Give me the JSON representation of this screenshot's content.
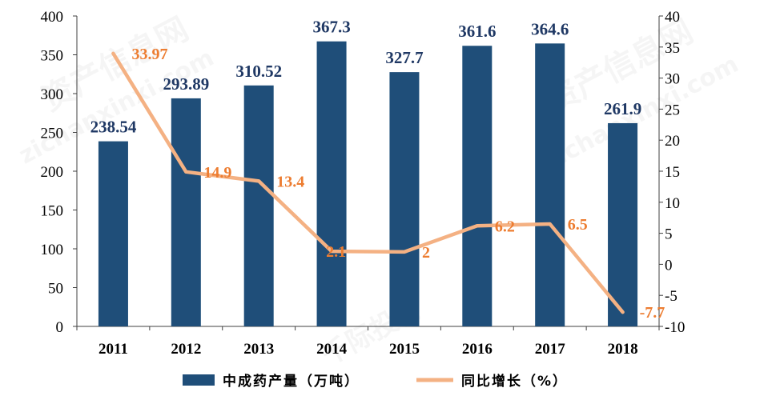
{
  "chart_data": {
    "type": "bar",
    "categories": [
      "2011",
      "2012",
      "2013",
      "2014",
      "2015",
      "2016",
      "2017",
      "2018"
    ],
    "series": [
      {
        "name": "中成药产量（万吨）",
        "type": "bar",
        "axis": "left",
        "values": [
          238.54,
          293.89,
          310.52,
          367.3,
          327.7,
          361.6,
          364.6,
          261.9
        ],
        "color": "#1f4e79",
        "label_color": "#1f3864"
      },
      {
        "name": "同比增长（%）",
        "type": "line",
        "axis": "right",
        "values": [
          33.97,
          14.9,
          13.4,
          2.1,
          2,
          6.2,
          6.5,
          -7.7
        ],
        "color": "#f4b183",
        "label_color": "#ed7d31"
      }
    ],
    "y_left": {
      "min": 0,
      "max": 400,
      "step": 50,
      "tick_labels": [
        "0",
        "50",
        "100",
        "150",
        "200",
        "250",
        "300",
        "350",
        "400"
      ]
    },
    "y_right": {
      "min": -10,
      "max": 40,
      "step": 5,
      "tick_labels": [
        "-10",
        "-5",
        "0",
        "5",
        "10",
        "15",
        "20",
        "25",
        "30",
        "35",
        "40"
      ]
    },
    "grid": false,
    "legend": "bottom",
    "axis_color": "#404040"
  },
  "watermark": {
    "site_name": "资产信息网",
    "site_url": "zichanxinxi.com",
    "brand": "千际投行"
  }
}
